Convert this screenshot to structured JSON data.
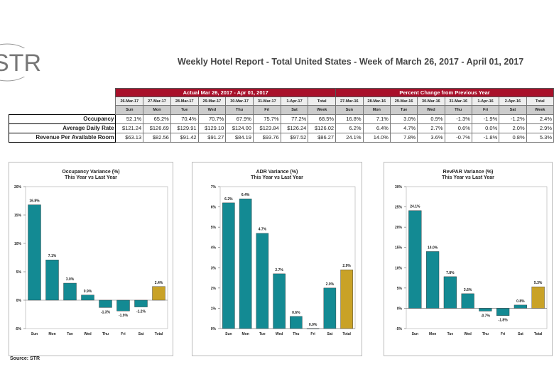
{
  "logo": "STR",
  "title": "Weekly Hotel Report - Total United States - Week of March 26, 2017 - April 01, 2017",
  "table": {
    "actual_header": "Actual Mar 26, 2017 - Apr 01, 2017",
    "change_header": "Percent Change from Previous Year",
    "actual_dates": [
      "26-Mar-17",
      "27-Mar-17",
      "28-Mar-17",
      "29-Mar-17",
      "30-Mar-17",
      "31-Mar-17",
      "1-Apr-17",
      "Total"
    ],
    "change_dates": [
      "27-Mar-16",
      "28-Mar-16",
      "29-Mar-16",
      "30-Mar-16",
      "31-Mar-16",
      "1-Apr-16",
      "2-Apr-16",
      "Total"
    ],
    "days": [
      "Sun",
      "Mon",
      "Tue",
      "Wed",
      "Thu",
      "Fri",
      "Sat",
      "Week"
    ],
    "rows": [
      {
        "label": "Occupancy",
        "actual": [
          "52.1%",
          "65.2%",
          "70.4%",
          "70.7%",
          "67.9%",
          "75.7%",
          "77.2%",
          "68.5%"
        ],
        "change": [
          "16.8%",
          "7.1%",
          "3.0%",
          "0.9%",
          "-1.3%",
          "-1.9%",
          "-1.2%",
          "2.4%"
        ]
      },
      {
        "label": "Average Daily Rate",
        "actual": [
          "$121.24",
          "$126.69",
          "$129.91",
          "$129.10",
          "$124.00",
          "$123.84",
          "$126.24",
          "$126.02"
        ],
        "change": [
          "6.2%",
          "6.4%",
          "4.7%",
          "2.7%",
          "0.6%",
          "0.0%",
          "2.0%",
          "2.9%"
        ]
      },
      {
        "label": "Revenue Per Available Room",
        "actual": [
          "$63.13",
          "$82.56",
          "$91.42",
          "$91.27",
          "$84.19",
          "$93.76",
          "$97.52",
          "$86.27"
        ],
        "change": [
          "24.1%",
          "14.0%",
          "7.8%",
          "3.6%",
          "-0.7%",
          "-1.8%",
          "0.8%",
          "5.3%"
        ]
      }
    ]
  },
  "colors": {
    "bar": "#138a93",
    "total": "#c9a227",
    "header": "#a8102a"
  },
  "chart_data": [
    {
      "type": "bar",
      "title": "Occupancy Variance (%)",
      "subtitle": "This Year vs Last Year",
      "categories": [
        "Sun",
        "Mon",
        "Tue",
        "Wed",
        "Thu",
        "Fri",
        "Sat",
        "Total"
      ],
      "values": [
        16.8,
        7.1,
        3.0,
        0.9,
        -1.3,
        -1.9,
        -1.2,
        2.4
      ],
      "labels": [
        "16.8%",
        "7.1%",
        "3.0%",
        "0.9%",
        "-1.3%",
        "-1.9%",
        "-1.2%",
        "2.4%"
      ],
      "ylim": [
        -5,
        20
      ],
      "yticks": [
        "20%",
        "15%",
        "10%",
        "5%",
        "0%",
        "-5%"
      ],
      "ytick_values": [
        20,
        15,
        10,
        5,
        0,
        -5
      ]
    },
    {
      "type": "bar",
      "title": "ADR Variance (%)",
      "subtitle": "This Year vs Last Year",
      "categories": [
        "Sun",
        "Mon",
        "Tue",
        "Wed",
        "Thu",
        "Fri",
        "Sat",
        "Total"
      ],
      "values": [
        6.2,
        6.4,
        4.7,
        2.7,
        0.6,
        0.0,
        2.0,
        2.9
      ],
      "labels": [
        "6.2%",
        "6.4%",
        "4.7%",
        "2.7%",
        "0.6%",
        "0.0%",
        "2.0%",
        "2.9%"
      ],
      "ylim": [
        0,
        7
      ],
      "yticks": [
        "7%",
        "6%",
        "5%",
        "4%",
        "3%",
        "2%",
        "1%",
        "0%"
      ],
      "ytick_values": [
        7,
        6,
        5,
        4,
        3,
        2,
        1,
        0
      ]
    },
    {
      "type": "bar",
      "title": "RevPAR Variance (%)",
      "subtitle": "This Year vs Last Year",
      "categories": [
        "Sun",
        "Mon",
        "Tue",
        "Wed",
        "Thu",
        "Fri",
        "Sat",
        "Total"
      ],
      "values": [
        24.1,
        14.0,
        7.8,
        3.6,
        -0.7,
        -1.8,
        0.8,
        5.3
      ],
      "labels": [
        "24.1%",
        "14.0%",
        "7.8%",
        "3.6%",
        "-0.7%",
        "-1.8%",
        "0.8%",
        "5.3%"
      ],
      "ylim": [
        -5,
        30
      ],
      "yticks": [
        "30%",
        "25%",
        "20%",
        "15%",
        "10%",
        "5%",
        "0%",
        "-5%"
      ],
      "ytick_values": [
        30,
        25,
        20,
        15,
        10,
        5,
        0,
        -5
      ]
    }
  ],
  "source": "Source: STR"
}
